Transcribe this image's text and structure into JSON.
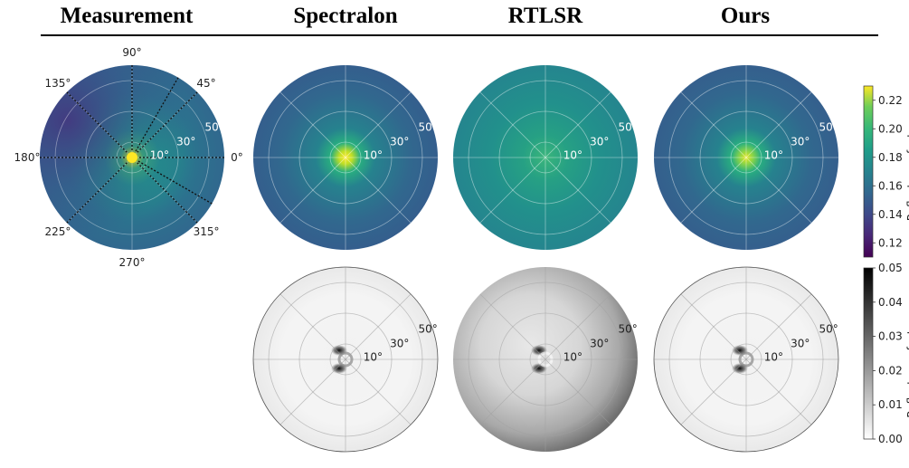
{
  "columns": {
    "measurement": "Measurement",
    "spectralon": "Spectralon",
    "rtlsr": "RTLSR",
    "ours": "Ours"
  },
  "angle_labels": [
    "0°",
    "45°",
    "90°",
    "135°",
    "180°",
    "225°",
    "270°",
    "315°"
  ],
  "radial_labels": [
    "10°",
    "30°",
    "50°"
  ],
  "colorbar_reflectance": {
    "label": "Reflectance factor",
    "colormap": "viridis",
    "ticks": [
      "0.12",
      "0.14",
      "0.16",
      "0.18",
      "0.20",
      "0.22"
    ],
    "range": [
      0.11,
      0.23
    ]
  },
  "colorbar_error": {
    "label": "Reflectance factor error",
    "colormap": "gray_r",
    "ticks": [
      "0.00",
      "0.01",
      "0.02",
      "0.03",
      "0.04",
      "0.05"
    ],
    "range": [
      0.0,
      0.05
    ]
  },
  "chart_data": [
    {
      "type": "heatmap",
      "projection": "polar",
      "panel": "Measurement",
      "quantity": "Reflectance factor",
      "peak": 0.22,
      "center": 0.16,
      "rim": 0.13,
      "scan_lines_deg": [
        45,
        60,
        90,
        135,
        180,
        225,
        315,
        330
      ],
      "rlim_deg": [
        0,
        60
      ]
    },
    {
      "type": "heatmap",
      "projection": "polar",
      "panel": "Spectralon",
      "quantity": "Reflectance factor",
      "peak": 0.225,
      "center": 0.15,
      "rim": 0.135,
      "rlim_deg": [
        0,
        60
      ]
    },
    {
      "type": "heatmap",
      "projection": "polar",
      "panel": "RTLSR",
      "quantity": "Reflectance factor",
      "peak": 0.175,
      "center": 0.165,
      "rim": 0.158,
      "rlim_deg": [
        0,
        60
      ]
    },
    {
      "type": "heatmap",
      "projection": "polar",
      "panel": "Ours",
      "quantity": "Reflectance factor",
      "peak": 0.215,
      "center": 0.15,
      "rim": 0.135,
      "rlim_deg": [
        0,
        60
      ]
    },
    {
      "type": "heatmap",
      "projection": "polar",
      "panel": "Spectralon",
      "quantity": "Reflectance factor error",
      "max": 0.05,
      "typical": 0.005,
      "rlim_deg": [
        0,
        60
      ]
    },
    {
      "type": "heatmap",
      "projection": "polar",
      "panel": "RTLSR",
      "quantity": "Reflectance factor error",
      "max": 0.05,
      "typical": 0.015,
      "rim": 0.03,
      "rlim_deg": [
        0,
        60
      ]
    },
    {
      "type": "heatmap",
      "projection": "polar",
      "panel": "Ours",
      "quantity": "Reflectance factor error",
      "max": 0.05,
      "typical": 0.004,
      "rlim_deg": [
        0,
        60
      ]
    }
  ]
}
